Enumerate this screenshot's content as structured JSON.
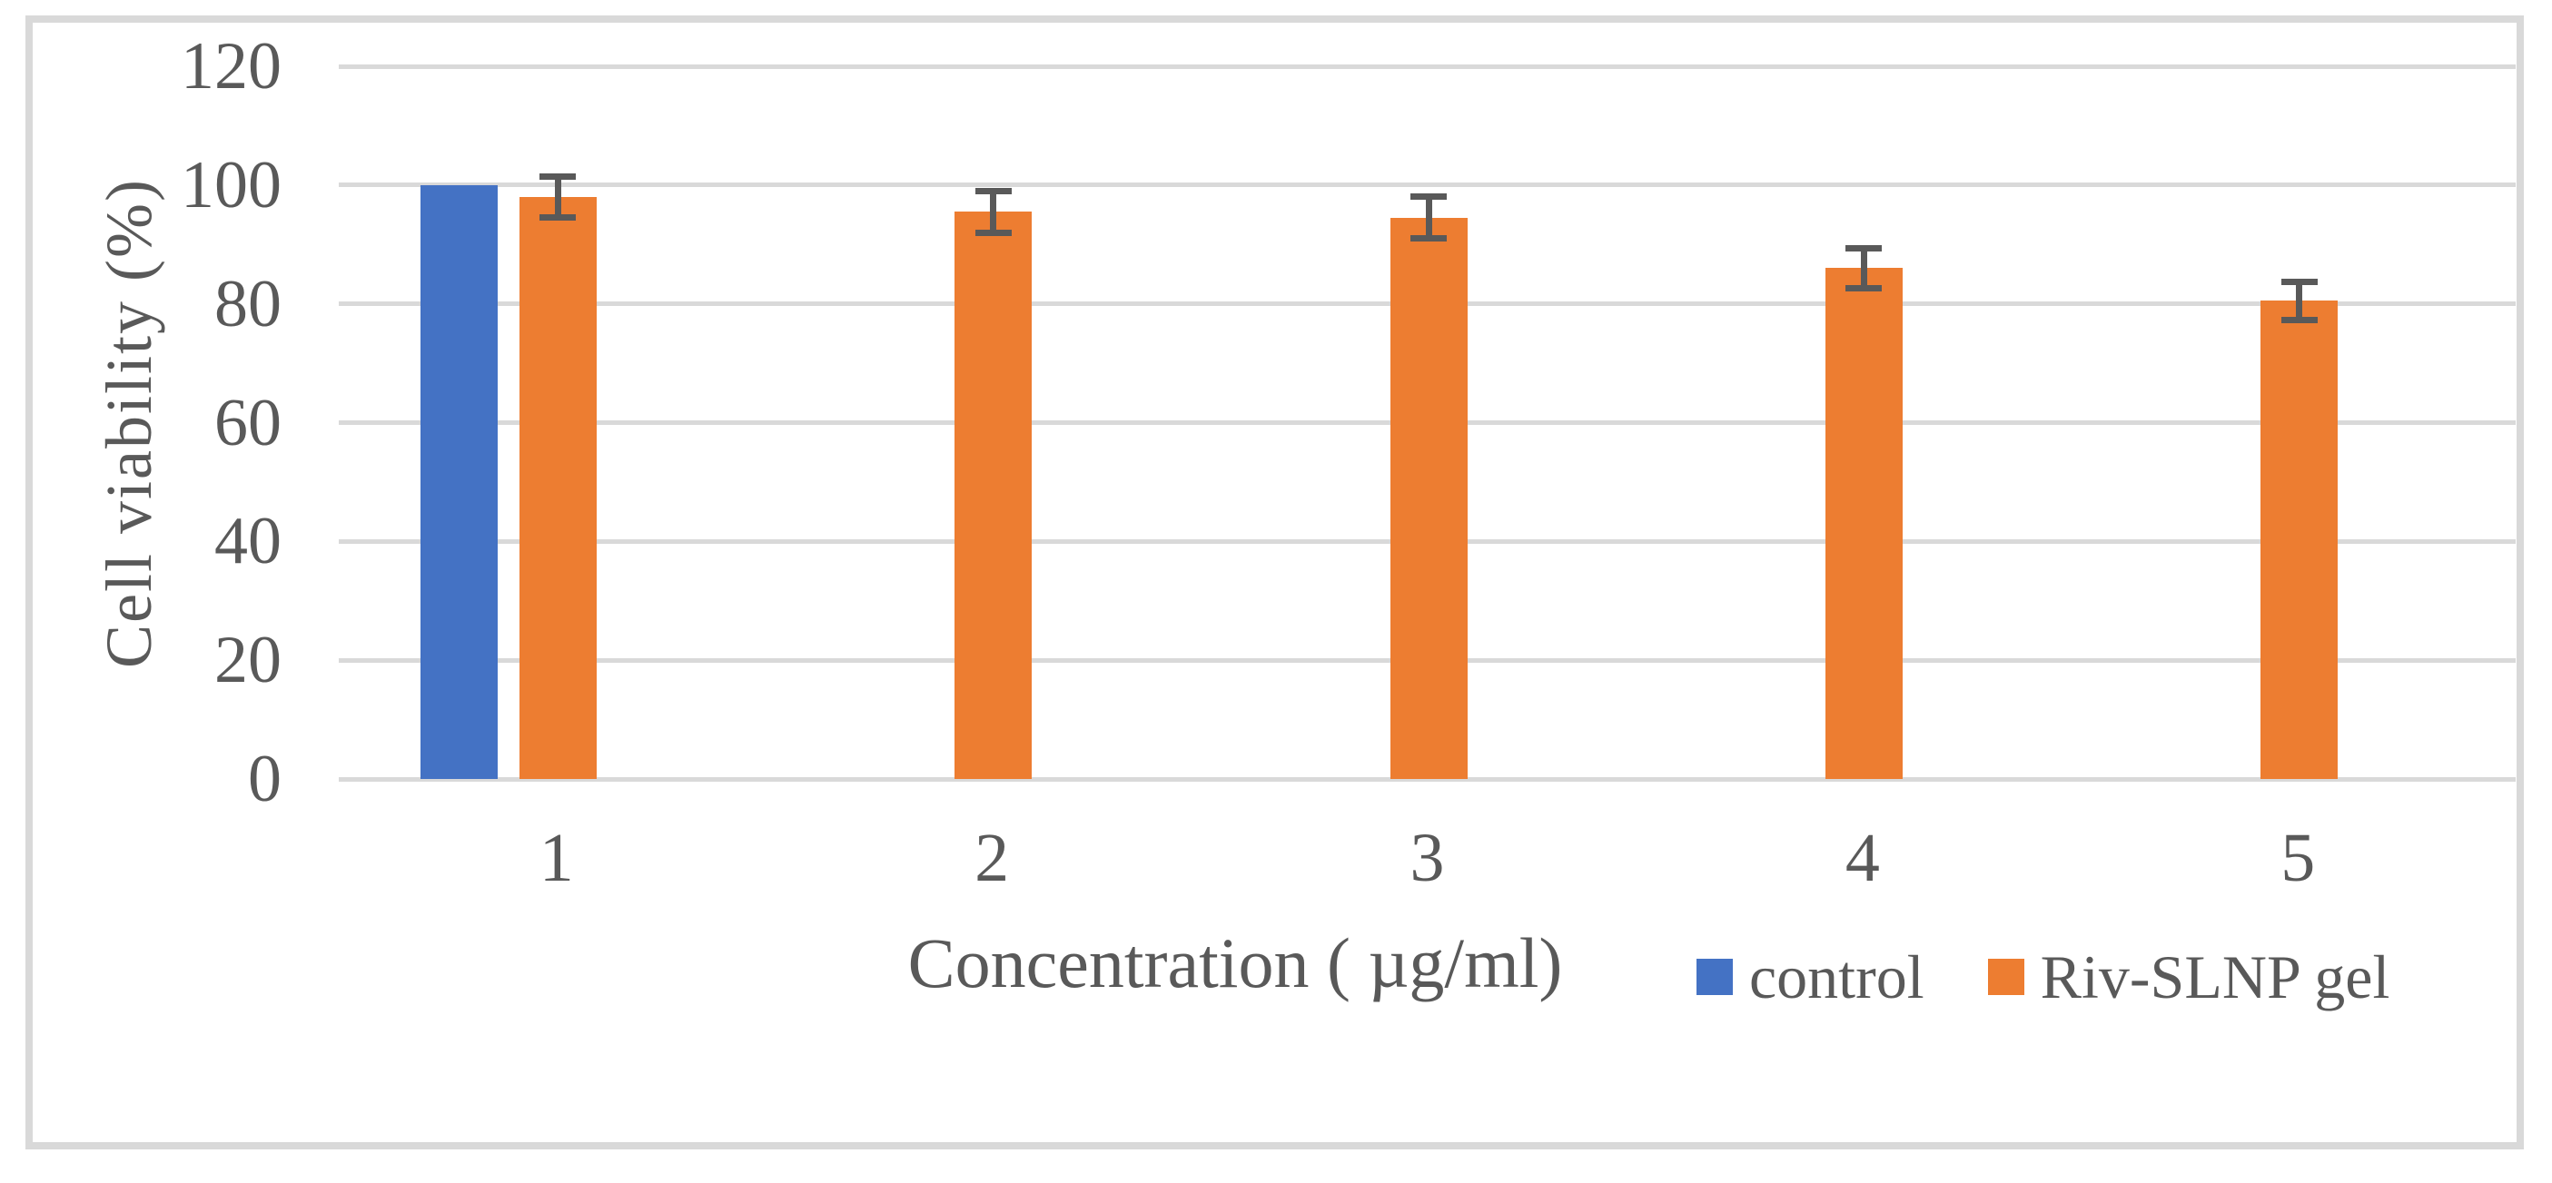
{
  "chart_data": {
    "type": "bar",
    "title": "",
    "xlabel": "Concentration ( µg/ml)",
    "ylabel": "Cell viability (%)",
    "categories": [
      "1",
      "2",
      "3",
      "4",
      "5"
    ],
    "series": [
      {
        "name": "control",
        "color": "#4472C4",
        "values": [
          100,
          null,
          null,
          null,
          null
        ]
      },
      {
        "name": "Riv-SLNP gel",
        "color": "#ED7D31",
        "values": [
          98,
          95.5,
          94.5,
          86,
          80.5
        ],
        "error_bars": [
          3.5,
          3.5,
          3.5,
          3.3,
          3.2
        ]
      }
    ],
    "ylim": [
      0,
      120
    ],
    "yticks": [
      0,
      20,
      40,
      60,
      80,
      100,
      120
    ],
    "grid": "horizontal-only",
    "gridline_color": "#D9D9D9",
    "frame_color": "#D9D9D9",
    "text_color": "#595959",
    "error_bar_color": "#595959",
    "legend_position": "bottom-right"
  }
}
